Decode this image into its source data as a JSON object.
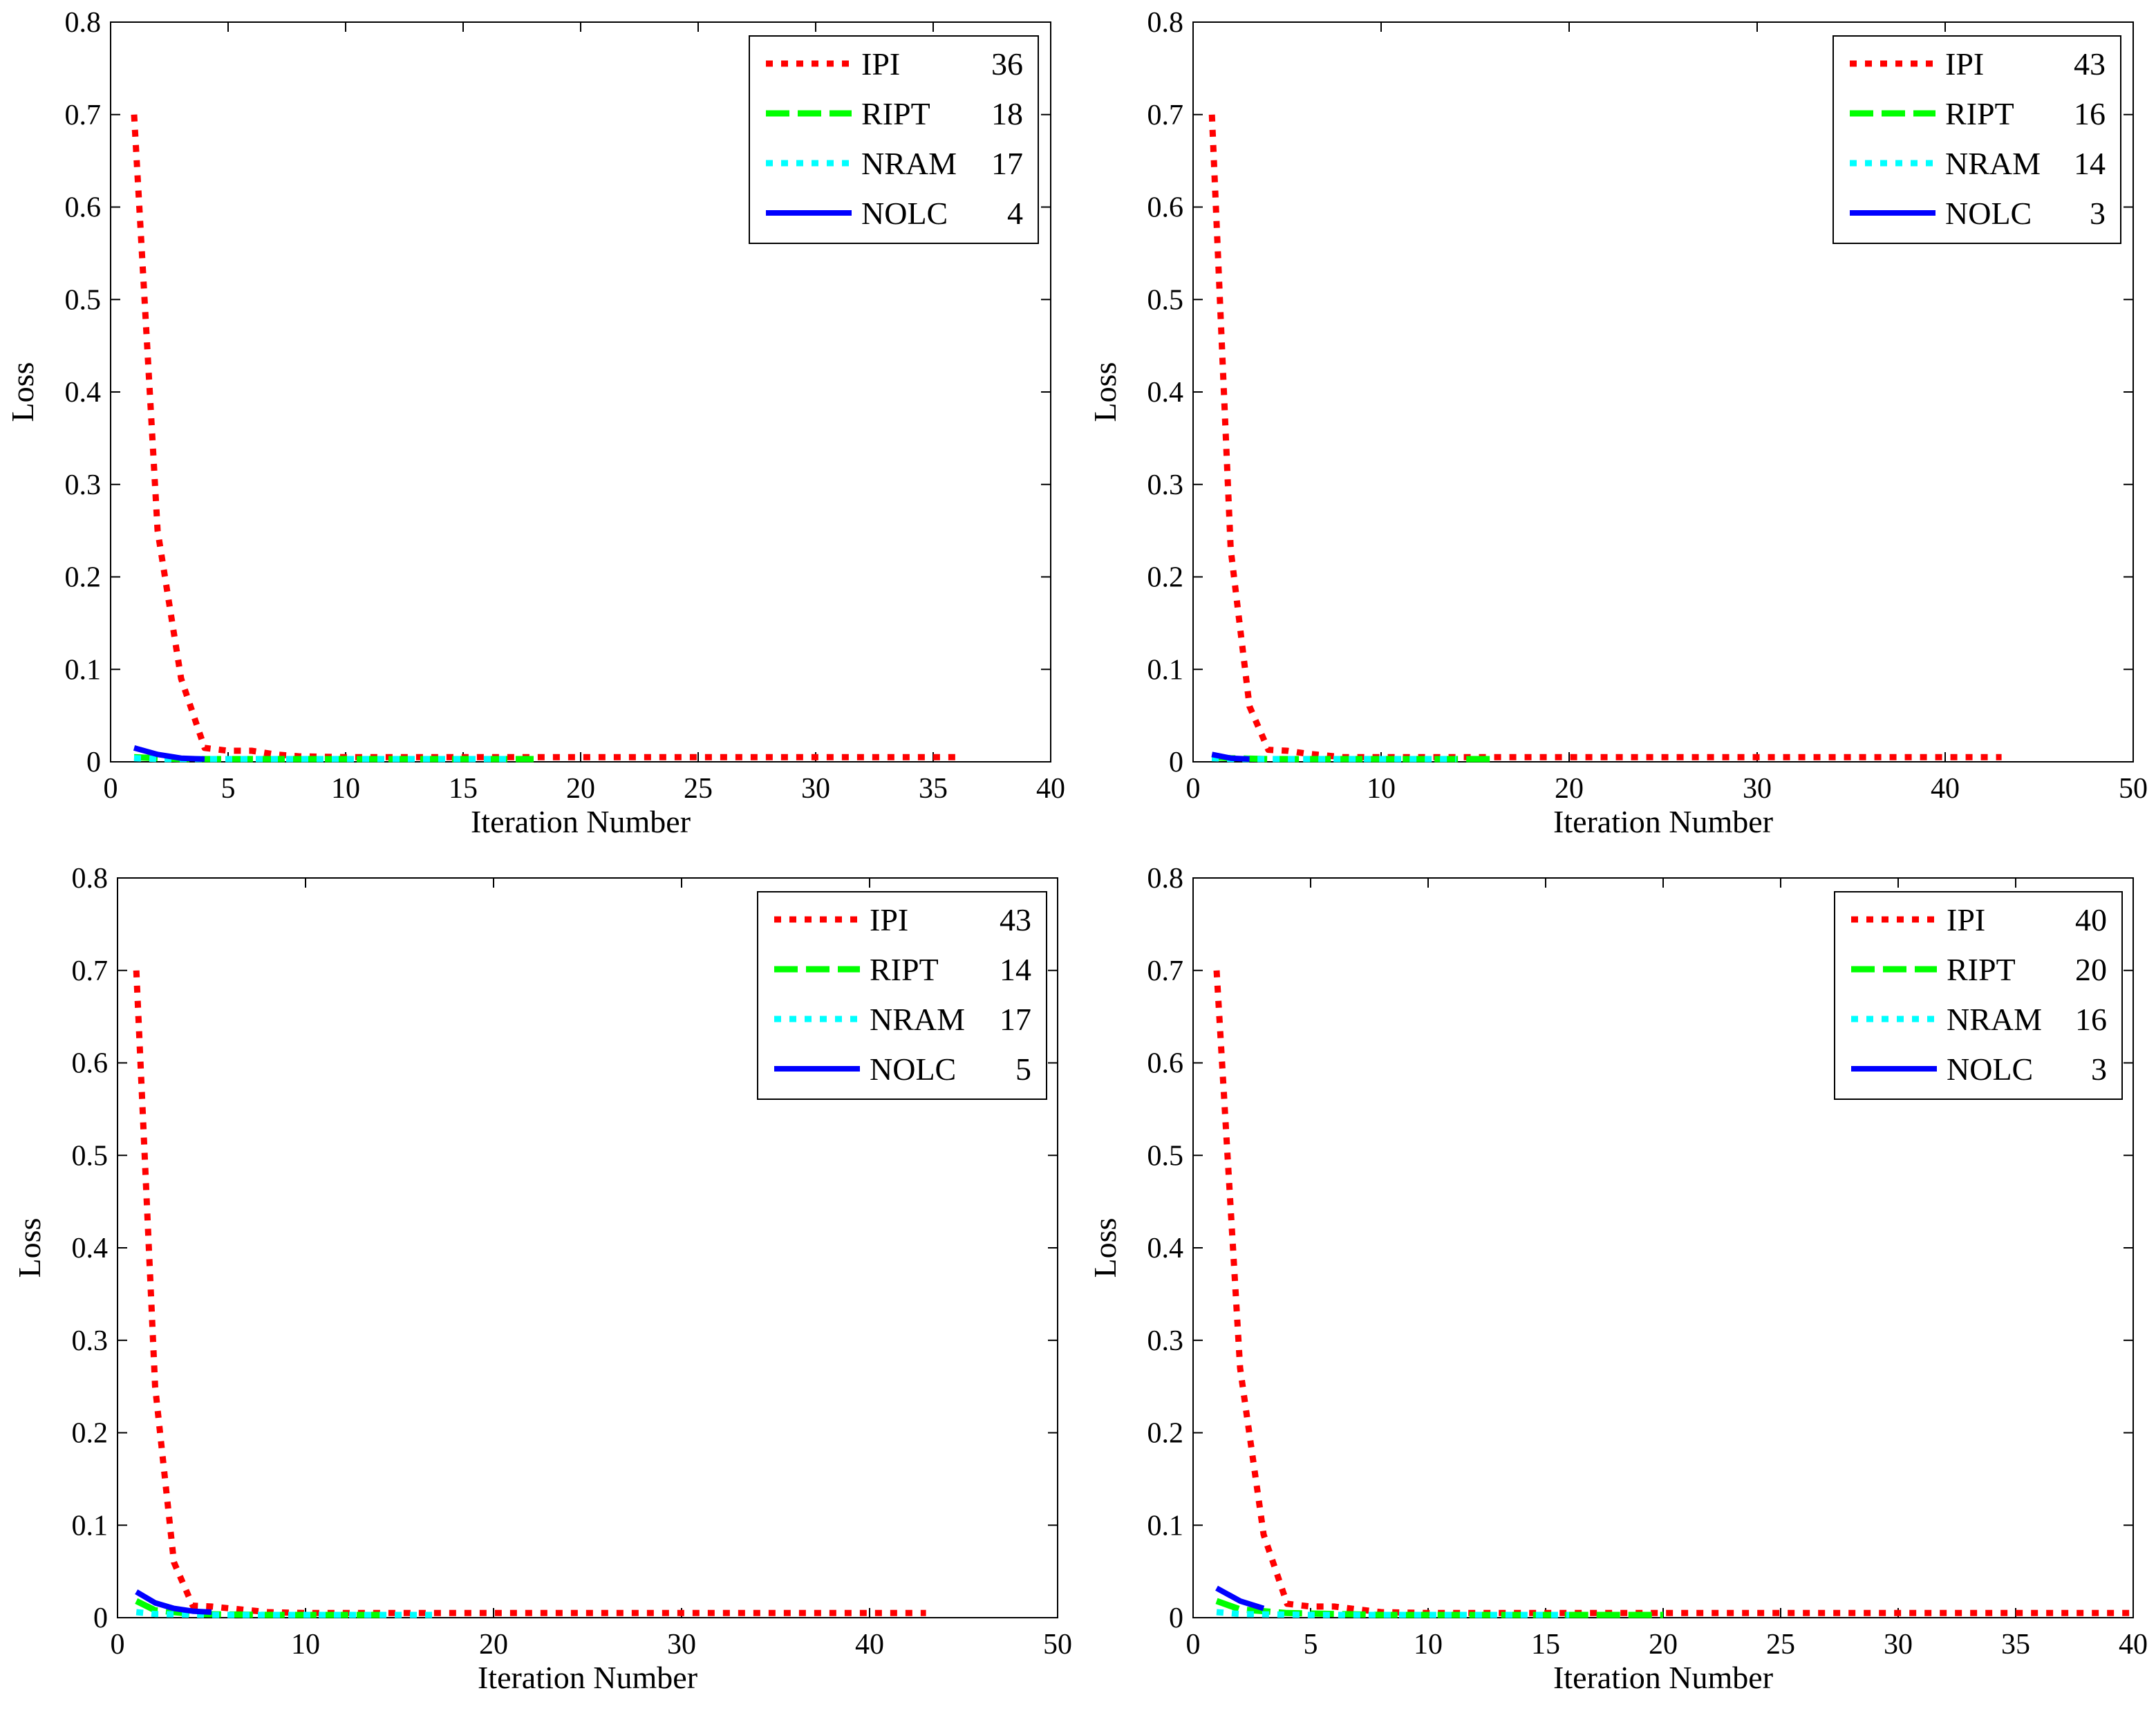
{
  "chart_data": [
    {
      "type": "line",
      "xlabel": "Iteration Number",
      "ylabel": "Loss",
      "xlim": [
        0,
        40
      ],
      "ylim": [
        0,
        0.8
      ],
      "xticks": [
        "0",
        "5",
        "10",
        "15",
        "20",
        "25",
        "30",
        "35",
        "40"
      ],
      "yticks": [
        "0",
        "0.1",
        "0.2",
        "0.3",
        "0.4",
        "0.5",
        "0.6",
        "0.7",
        "0.8"
      ],
      "legend_position": "top-right",
      "series": [
        {
          "name": "IPI",
          "count": "36",
          "color": "#ff0000",
          "style": "dotted",
          "x": [
            1,
            2,
            3,
            4,
            5,
            6,
            7,
            8,
            10,
            15,
            20,
            25,
            30,
            36
          ],
          "values": [
            0.7,
            0.25,
            0.09,
            0.015,
            0.012,
            0.012,
            0.008,
            0.006,
            0.005,
            0.005,
            0.005,
            0.005,
            0.005,
            0.005
          ]
        },
        {
          "name": "RIPT",
          "count": "18",
          "color": "#00ff00",
          "style": "dashed",
          "x": [
            1,
            2,
            3,
            4,
            6,
            10,
            14,
            18
          ],
          "values": [
            0.005,
            0.004,
            0.003,
            0.003,
            0.003,
            0.003,
            0.003,
            0.003
          ]
        },
        {
          "name": "NRAM",
          "count": "17",
          "color": "#00ffff",
          "style": "dotted",
          "x": [
            1,
            2,
            3,
            5,
            10,
            17
          ],
          "values": [
            0.004,
            0.003,
            0.003,
            0.003,
            0.003,
            0.003
          ]
        },
        {
          "name": "NOLC",
          "count": "4",
          "color": "#0000ff",
          "style": "solid",
          "x": [
            1,
            2,
            3,
            4
          ],
          "values": [
            0.015,
            0.008,
            0.004,
            0.003
          ]
        }
      ]
    },
    {
      "type": "line",
      "xlabel": "Iteration Number",
      "ylabel": "Loss",
      "xlim": [
        0,
        50
      ],
      "ylim": [
        0,
        0.8
      ],
      "xticks": [
        "0",
        "10",
        "20",
        "30",
        "40",
        "50"
      ],
      "yticks": [
        "0",
        "0.1",
        "0.2",
        "0.3",
        "0.4",
        "0.5",
        "0.6",
        "0.7",
        "0.8"
      ],
      "legend_position": "top-right",
      "series": [
        {
          "name": "IPI",
          "count": "43",
          "color": "#ff0000",
          "style": "dotted",
          "x": [
            1,
            2,
            3,
            4,
            5,
            6,
            8,
            10,
            20,
            30,
            43
          ],
          "values": [
            0.7,
            0.23,
            0.06,
            0.013,
            0.012,
            0.009,
            0.005,
            0.005,
            0.005,
            0.005,
            0.005
          ]
        },
        {
          "name": "RIPT",
          "count": "16",
          "color": "#00ff00",
          "style": "dashed",
          "x": [
            1,
            2,
            4,
            8,
            12,
            16
          ],
          "values": [
            0.005,
            0.004,
            0.003,
            0.003,
            0.003,
            0.003
          ]
        },
        {
          "name": "NRAM",
          "count": "14",
          "color": "#00ffff",
          "style": "dotted",
          "x": [
            1,
            2,
            5,
            10,
            14
          ],
          "values": [
            0.004,
            0.003,
            0.003,
            0.003,
            0.003
          ]
        },
        {
          "name": "NOLC",
          "count": "3",
          "color": "#0000ff",
          "style": "solid",
          "x": [
            1,
            2,
            3
          ],
          "values": [
            0.008,
            0.004,
            0.003
          ]
        }
      ]
    },
    {
      "type": "line",
      "xlabel": "Iteration Number",
      "ylabel": "Loss",
      "xlim": [
        0,
        50
      ],
      "ylim": [
        0,
        0.8
      ],
      "xticks": [
        "0",
        "10",
        "20",
        "30",
        "40",
        "50"
      ],
      "yticks": [
        "0",
        "0.1",
        "0.2",
        "0.3",
        "0.4",
        "0.5",
        "0.6",
        "0.7",
        "0.8"
      ],
      "legend_position": "top-right",
      "series": [
        {
          "name": "IPI",
          "count": "43",
          "color": "#ff0000",
          "style": "dotted",
          "x": [
            1,
            2,
            3,
            4,
            5,
            6,
            8,
            10,
            20,
            30,
            43
          ],
          "values": [
            0.7,
            0.25,
            0.06,
            0.013,
            0.012,
            0.01,
            0.006,
            0.005,
            0.005,
            0.005,
            0.005
          ]
        },
        {
          "name": "RIPT",
          "count": "14",
          "color": "#00ff00",
          "style": "dashed",
          "x": [
            1,
            2,
            4,
            8,
            14
          ],
          "values": [
            0.018,
            0.008,
            0.004,
            0.003,
            0.003
          ]
        },
        {
          "name": "NRAM",
          "count": "17",
          "color": "#00ffff",
          "style": "dotted",
          "x": [
            1,
            2,
            5,
            10,
            17
          ],
          "values": [
            0.006,
            0.004,
            0.003,
            0.003,
            0.003
          ]
        },
        {
          "name": "NOLC",
          "count": "5",
          "color": "#0000ff",
          "style": "solid",
          "x": [
            1,
            2,
            3,
            4,
            5
          ],
          "values": [
            0.028,
            0.016,
            0.01,
            0.007,
            0.006
          ]
        }
      ]
    },
    {
      "type": "line",
      "xlabel": "Iteration Number",
      "ylabel": "Loss",
      "xlim": [
        0,
        40
      ],
      "ylim": [
        0,
        0.8
      ],
      "xticks": [
        "0",
        "5",
        "10",
        "15",
        "20",
        "25",
        "30",
        "35",
        "40"
      ],
      "yticks": [
        "0",
        "0.1",
        "0.2",
        "0.3",
        "0.4",
        "0.5",
        "0.6",
        "0.7",
        "0.8"
      ],
      "legend_position": "top-right",
      "series": [
        {
          "name": "IPI",
          "count": "40",
          "color": "#ff0000",
          "style": "dotted",
          "x": [
            1,
            2,
            3,
            4,
            5,
            6,
            7,
            8,
            10,
            20,
            30,
            40
          ],
          "values": [
            0.7,
            0.27,
            0.09,
            0.015,
            0.012,
            0.012,
            0.009,
            0.006,
            0.005,
            0.005,
            0.005,
            0.005
          ]
        },
        {
          "name": "RIPT",
          "count": "20",
          "color": "#00ff00",
          "style": "dashed",
          "x": [
            1,
            2,
            4,
            8,
            14,
            20
          ],
          "values": [
            0.018,
            0.009,
            0.005,
            0.003,
            0.003,
            0.003
          ]
        },
        {
          "name": "NRAM",
          "count": "16",
          "color": "#00ffff",
          "style": "dotted",
          "x": [
            1,
            2,
            5,
            10,
            16
          ],
          "values": [
            0.006,
            0.004,
            0.003,
            0.003,
            0.003
          ]
        },
        {
          "name": "NOLC",
          "count": "3",
          "color": "#0000ff",
          "style": "solid",
          "x": [
            1,
            2,
            3
          ],
          "values": [
            0.032,
            0.018,
            0.01
          ]
        }
      ]
    }
  ]
}
